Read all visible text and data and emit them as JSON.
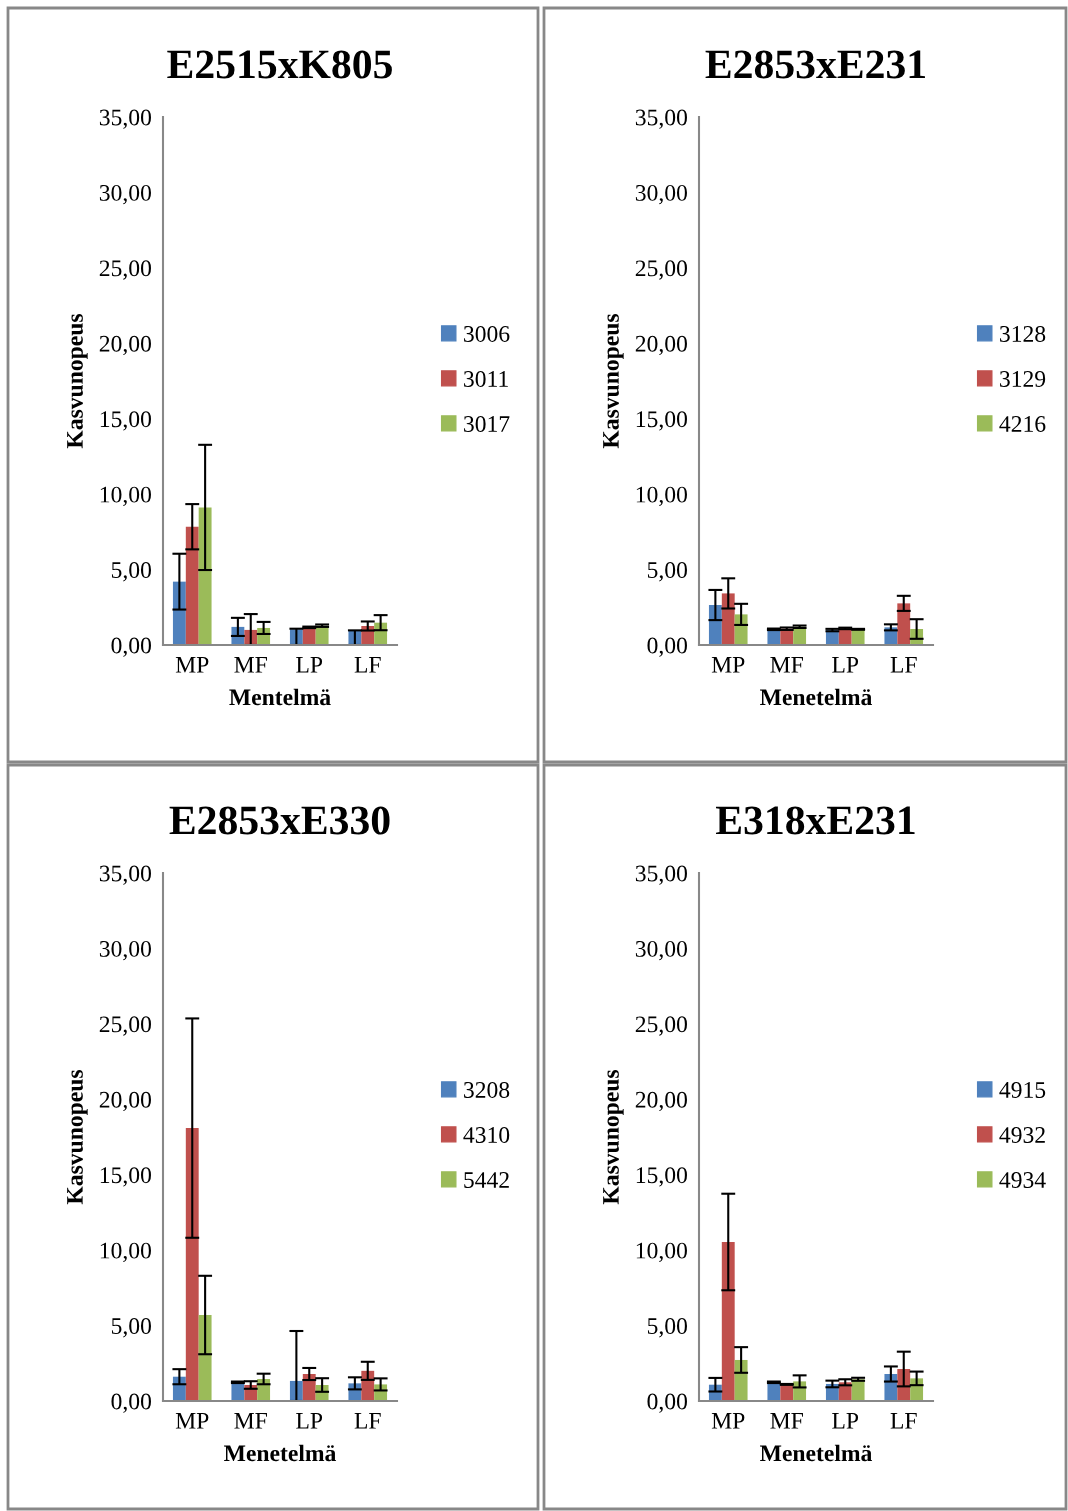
{
  "chart_data": [
    {
      "type": "bar",
      "title": "E2515xK805",
      "xlabel": "Mentelmä",
      "ylabel": "Kasvunopeus",
      "categories": [
        "MP",
        "MF",
        "LP",
        "LF"
      ],
      "ylim": [
        0,
        35
      ],
      "yticks": [
        {
          "value": 0,
          "label": "0,00"
        },
        {
          "value": 5,
          "label": "5,00"
        },
        {
          "value": 10,
          "label": "10,00"
        },
        {
          "value": 15,
          "label": "15,00"
        },
        {
          "value": 20,
          "label": "20,00"
        },
        {
          "value": 25,
          "label": "25,00"
        },
        {
          "value": 30,
          "label": "30,00"
        },
        {
          "value": 35,
          "label": "35,00"
        }
      ],
      "grid": false,
      "legend": "right",
      "series": [
        {
          "name": "3006",
          "color": "#4f81bd",
          "values": [
            4.2,
            1.2,
            1.04,
            0.95
          ],
          "errors": [
            1.85,
            0.6,
            [
              0,
              1.08
            ],
            [
              0,
              0.97
            ]
          ]
        },
        {
          "name": "3011",
          "color": "#c0504d",
          "values": [
            7.84,
            1.0,
            1.17,
            1.26
          ],
          "errors": [
            1.5,
            [
              0,
              2.05
            ],
            0.05,
            0.3
          ]
        },
        {
          "name": "3017",
          "color": "#9bbb59",
          "values": [
            9.12,
            1.13,
            1.28,
            1.48
          ],
          "errors": [
            4.15,
            0.4,
            0.08,
            0.5
          ]
        }
      ]
    },
    {
      "type": "bar",
      "title": "E2853xE231",
      "xlabel": "Menetelmä",
      "ylabel": "Kasvunopeus",
      "categories": [
        "MP",
        "MF",
        "LP",
        "LF"
      ],
      "ylim": [
        0,
        35
      ],
      "yticks": [
        {
          "value": 0,
          "label": "0,00"
        },
        {
          "value": 5,
          "label": "5,00"
        },
        {
          "value": 10,
          "label": "10,00"
        },
        {
          "value": 15,
          "label": "15,00"
        },
        {
          "value": 20,
          "label": "20,00"
        },
        {
          "value": 25,
          "label": "25,00"
        },
        {
          "value": 30,
          "label": "30,00"
        },
        {
          "value": 35,
          "label": "35,00"
        }
      ],
      "grid": false,
      "legend": "right",
      "series": [
        {
          "name": "3128",
          "color": "#4f81bd",
          "values": [
            2.65,
            1.04,
            0.99,
            1.17
          ],
          "errors": [
            1.0,
            0.05,
            0.08,
            0.2
          ]
        },
        {
          "name": "3129",
          "color": "#c0504d",
          "values": [
            3.42,
            1.08,
            1.1,
            2.76
          ],
          "errors": [
            1.0,
            0.08,
            0.05,
            0.5
          ]
        },
        {
          "name": "4216",
          "color": "#9bbb59",
          "values": [
            2.03,
            1.21,
            1.04,
            1.06
          ],
          "errors": [
            0.7,
            0.08,
            0.03,
            0.65
          ]
        }
      ]
    },
    {
      "type": "bar",
      "title": "E2853xE330",
      "xlabel": "Menetelmä",
      "ylabel": "Kasvunopeus",
      "categories": [
        "MP",
        "MF",
        "LP",
        "LF"
      ],
      "ylim": [
        0,
        35
      ],
      "yticks": [
        {
          "value": 0,
          "label": "0,00"
        },
        {
          "value": 5,
          "label": "5,00"
        },
        {
          "value": 10,
          "label": "10,00"
        },
        {
          "value": 15,
          "label": "15,00"
        },
        {
          "value": 20,
          "label": "20,00"
        },
        {
          "value": 25,
          "label": "25,00"
        },
        {
          "value": 30,
          "label": "30,00"
        },
        {
          "value": 35,
          "label": "35,00"
        }
      ],
      "grid": false,
      "legend": "right",
      "series": [
        {
          "name": "3208",
          "color": "#4f81bd",
          "values": [
            1.61,
            1.24,
            1.33,
            1.17
          ],
          "errors": [
            0.5,
            0.05,
            [
              0,
              4.64
            ],
            0.4
          ]
        },
        {
          "name": "4310",
          "color": "#c0504d",
          "values": [
            18.09,
            1.06,
            1.79,
            2.0
          ],
          "errors": [
            7.27,
            0.25,
            0.4,
            0.6
          ]
        },
        {
          "name": "5442",
          "color": "#9bbb59",
          "values": [
            5.7,
            1.46,
            1.06,
            1.1
          ],
          "errors": [
            2.6,
            0.35,
            0.45,
            0.4
          ]
        }
      ]
    },
    {
      "type": "bar",
      "title": "E318xE231",
      "xlabel": "Menetelmä",
      "ylabel": "Kasvunopeus",
      "categories": [
        "MP",
        "MF",
        "LP",
        "LF"
      ],
      "ylim": [
        0,
        35
      ],
      "yticks": [
        {
          "value": 0,
          "label": "0,00"
        },
        {
          "value": 5,
          "label": "5,00"
        },
        {
          "value": 10,
          "label": "10,00"
        },
        {
          "value": 15,
          "label": "15,00"
        },
        {
          "value": 20,
          "label": "20,00"
        },
        {
          "value": 25,
          "label": "25,00"
        },
        {
          "value": 30,
          "label": "30,00"
        },
        {
          "value": 35,
          "label": "35,00"
        }
      ],
      "grid": false,
      "legend": "right",
      "series": [
        {
          "name": "4915",
          "color": "#4f81bd",
          "values": [
            1.08,
            1.24,
            1.13,
            1.79
          ],
          "errors": [
            0.45,
            0.05,
            0.22,
            0.5
          ]
        },
        {
          "name": "4932",
          "color": "#c0504d",
          "values": [
            10.54,
            1.1,
            1.24,
            2.12
          ],
          "errors": [
            3.2,
            0.03,
            0.2,
            1.15
          ]
        },
        {
          "name": "4934",
          "color": "#9bbb59",
          "values": [
            2.72,
            1.3,
            1.44,
            1.5
          ],
          "errors": [
            0.85,
            0.4,
            0.1,
            0.45
          ]
        }
      ]
    }
  ]
}
